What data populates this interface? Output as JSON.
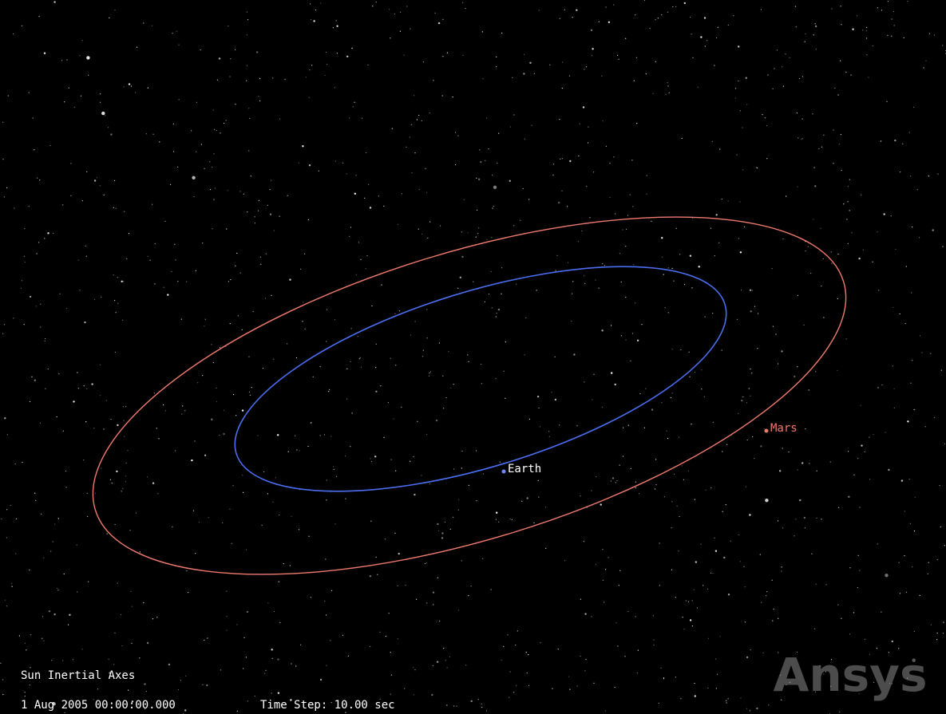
{
  "scene": {
    "labels": {
      "earth": "Earth",
      "mars": "Mars"
    },
    "status": {
      "frame": "Sun Inertial Axes",
      "time": "1 Aug 2005 00:00:00.000",
      "time_step": "Time Step: 10.00 sec"
    },
    "watermark": "Ansys"
  }
}
